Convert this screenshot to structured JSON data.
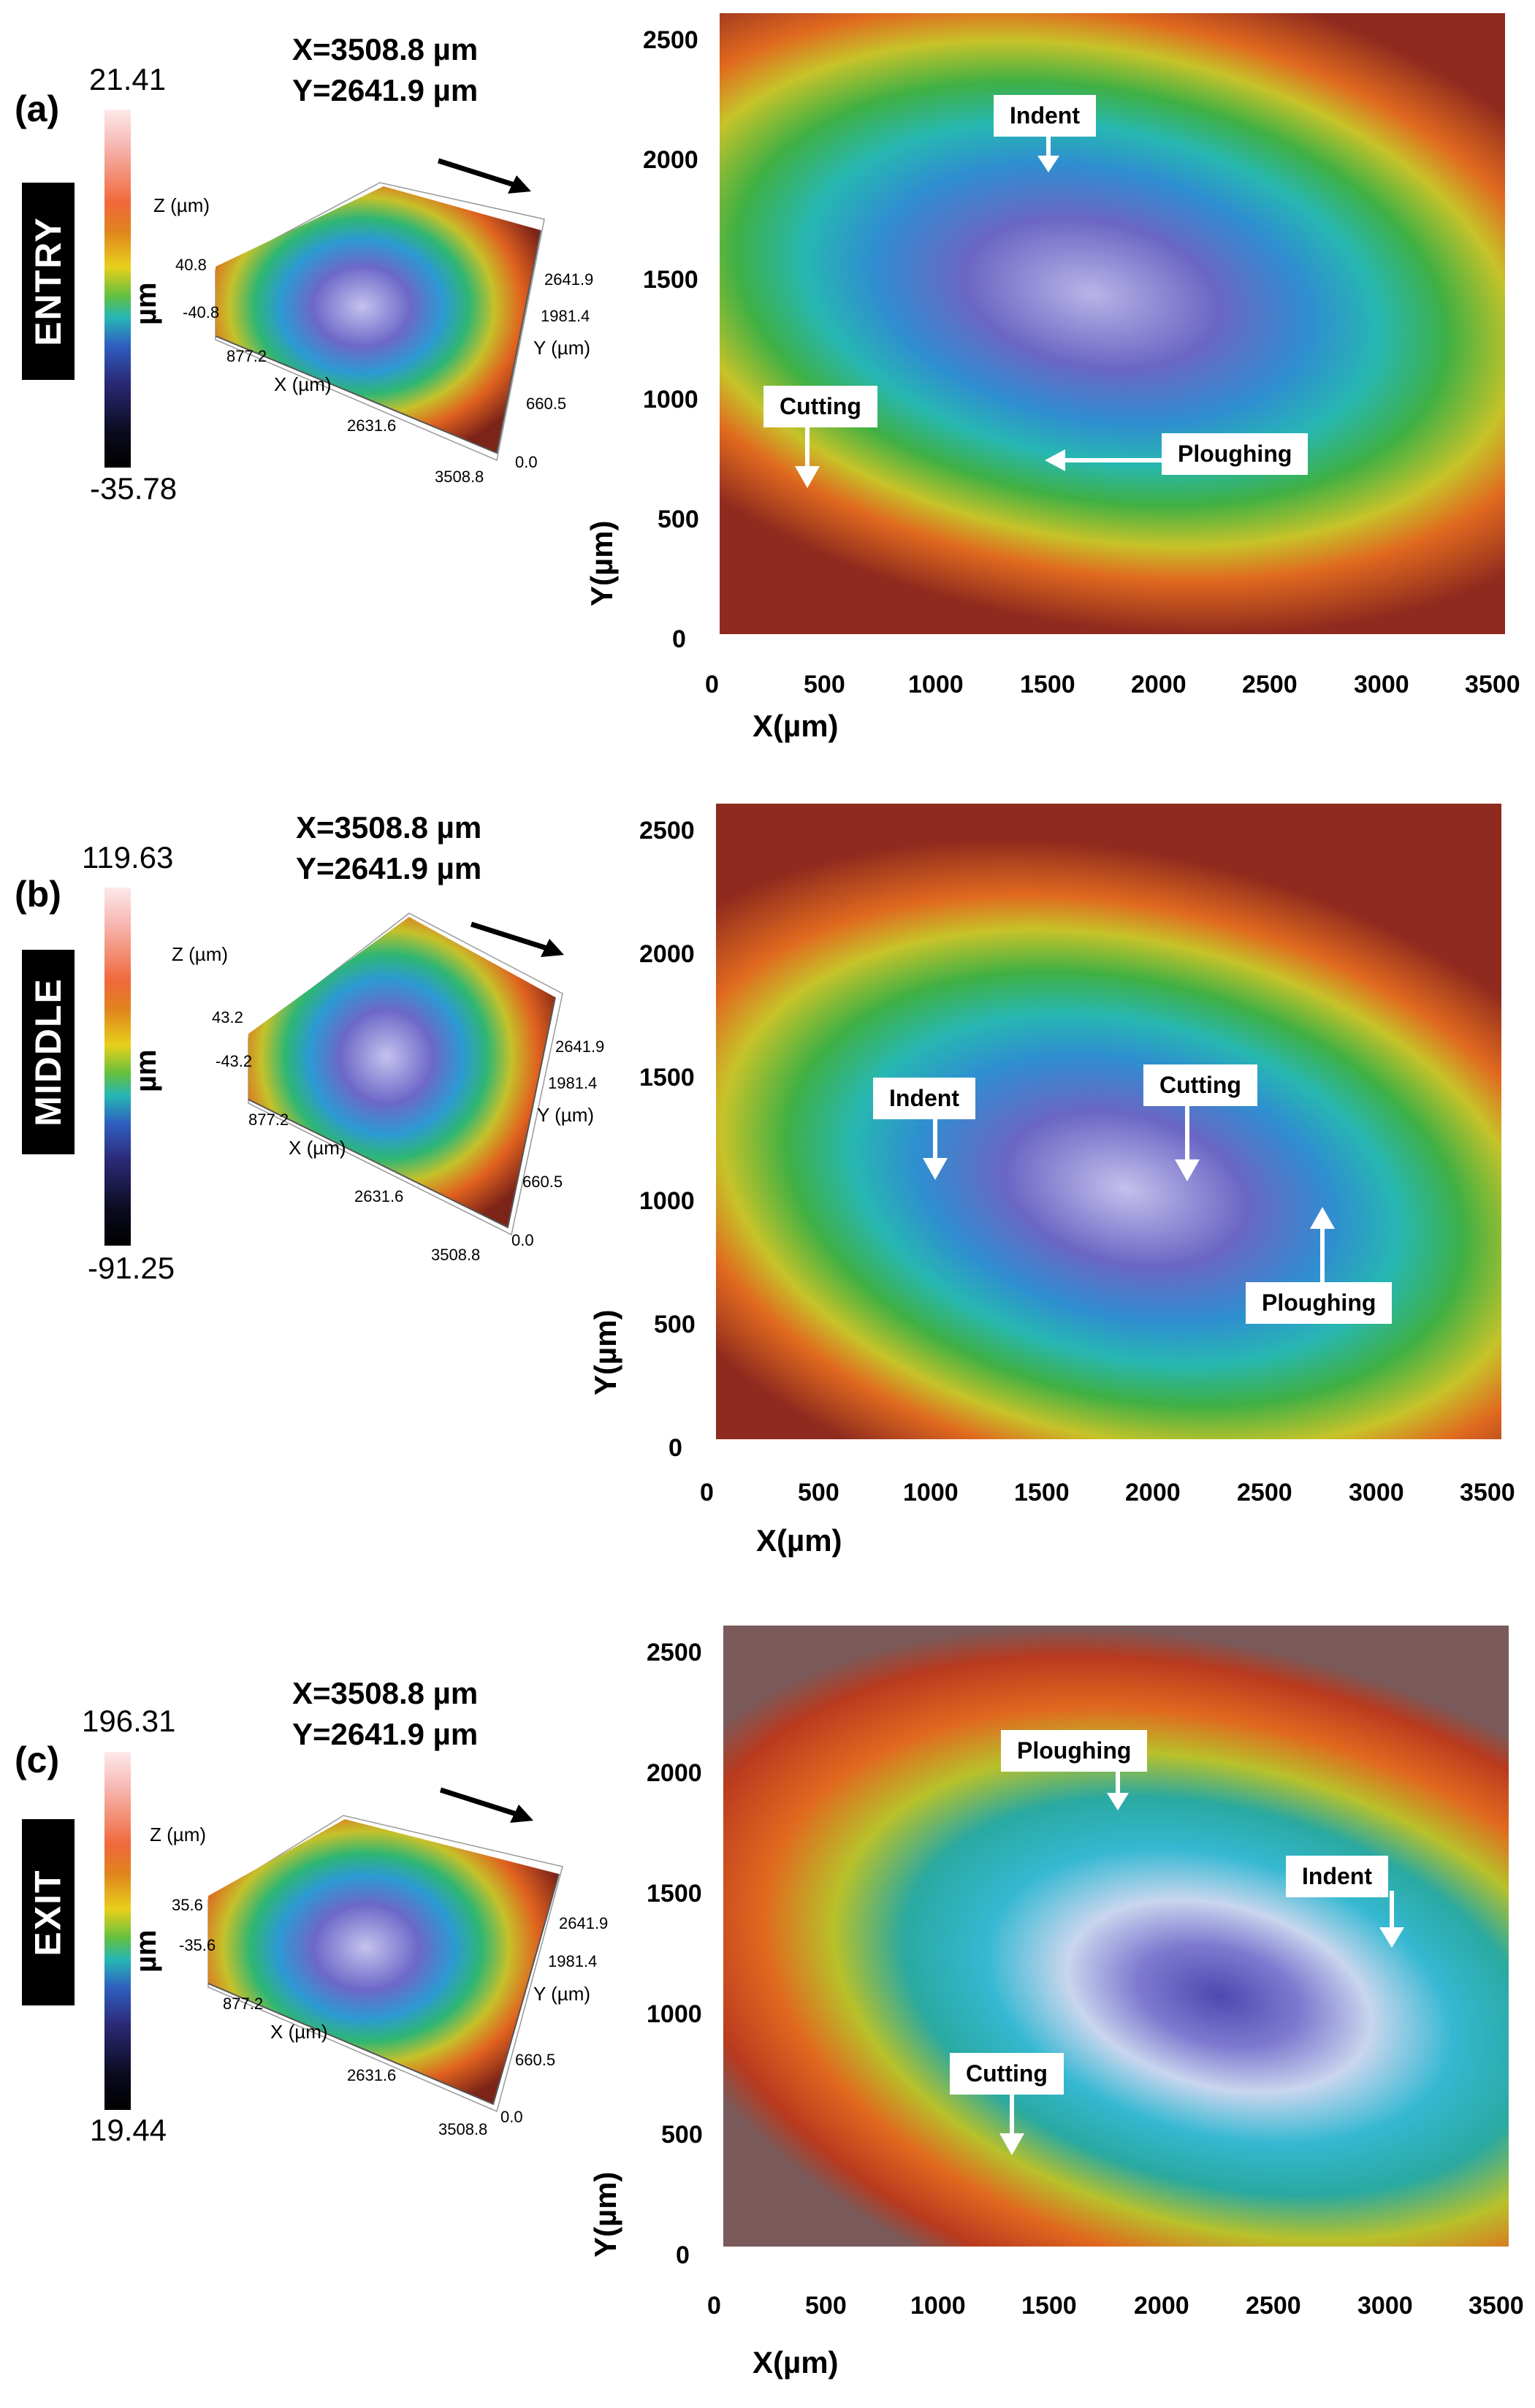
{
  "shared": {
    "x_extent": "X=3508.8 µm",
    "y_extent": "Y=2641.9 µm",
    "colorbar_unit": "µm",
    "z_axis_label": "Z (µm)",
    "x_axis_3d_label": "X (µm)",
    "y_axis_3d_label": "Y (µm)",
    "x_3d_ticks": [
      "877.2",
      "2631.6",
      "3508.8"
    ],
    "y_3d_ticks": [
      "2641.9",
      "1981.4",
      "660.5",
      "0.0"
    ],
    "map_x_label": "X(µm)",
    "map_y_label": "Y(µm)",
    "map_x_ticks": [
      "0",
      "500",
      "1000",
      "1500",
      "2000",
      "2500",
      "3000",
      "3500"
    ],
    "map_y_ticks": [
      "2500",
      "2000",
      "1500",
      "1000",
      "500",
      "0"
    ]
  },
  "panels": [
    {
      "letter": "(a)",
      "section": "ENTRY",
      "colorbar_max": "21.41",
      "colorbar_min": "-35.78",
      "z_ticks": [
        "40.8",
        "-40.8"
      ],
      "callouts": [
        "Indent",
        "Cutting",
        "Ploughing"
      ]
    },
    {
      "letter": "(b)",
      "section": "MIDDLE",
      "colorbar_max": "119.63",
      "colorbar_min": "-91.25",
      "z_ticks": [
        "43.2",
        "-43.2"
      ],
      "callouts": [
        "Indent",
        "Cutting",
        "Ploughing"
      ]
    },
    {
      "letter": "(c)",
      "section": "EXIT",
      "colorbar_max": "196.31",
      "colorbar_min": "19.44",
      "z_ticks": [
        "35.6",
        "-35.6"
      ],
      "callouts": [
        "Ploughing",
        "Indent",
        "Cutting"
      ]
    }
  ],
  "colors": {
    "map_outer": "#c8432a",
    "map_mid": "#3fae3a",
    "map_inner": "#6f6fc6",
    "callout_bg": "#ffffff"
  }
}
